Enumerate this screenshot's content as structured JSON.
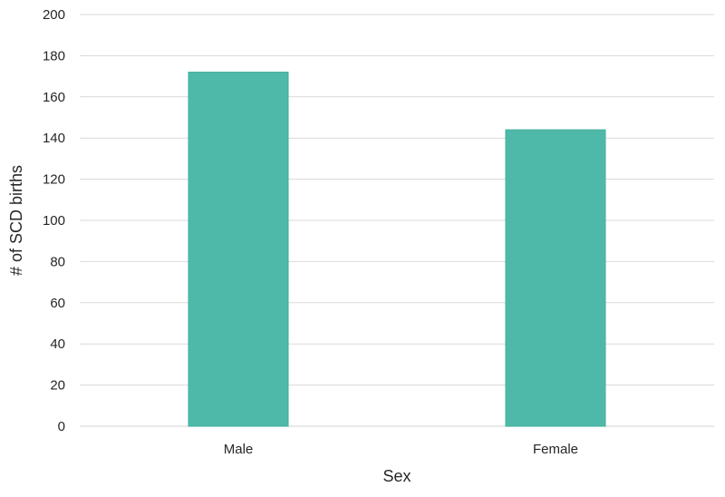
{
  "chart_data": {
    "type": "bar",
    "categories": [
      "Male",
      "Female"
    ],
    "values": [
      172,
      144
    ],
    "xlabel": "Sex",
    "ylabel": "# of SCD births",
    "ylim": [
      0,
      200
    ],
    "yticks": [
      0,
      20,
      40,
      60,
      80,
      100,
      120,
      140,
      160,
      180,
      200
    ],
    "grid": true,
    "legend": "none",
    "colors": {
      "bar": "#4fb9a9",
      "bar_edge": "#3fae9d",
      "grid": "#d9d9d9",
      "baseline": "#d0d0d0",
      "text": "#262626"
    }
  }
}
